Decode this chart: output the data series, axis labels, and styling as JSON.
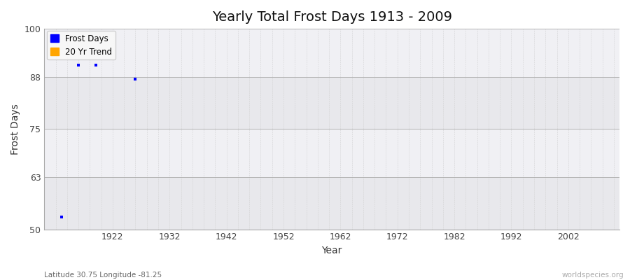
{
  "title": "Yearly Total Frost Days 1913 - 2009",
  "xlabel": "Year",
  "ylabel": "Frost Days",
  "subtitle": "Latitude 30.75 Longitude -81.25",
  "watermark": "worldspecies.org",
  "xlim": [
    1910,
    2011
  ],
  "ylim": [
    50,
    100
  ],
  "yticks": [
    50,
    63,
    75,
    88,
    100
  ],
  "xticks": [
    1922,
    1932,
    1942,
    1952,
    1962,
    1972,
    1982,
    1992,
    2002
  ],
  "data_years": [
    1913,
    1916,
    1919,
    1926
  ],
  "data_values": [
    53,
    91,
    91,
    87.5
  ],
  "point_color": "#0000ff",
  "point_size": 8,
  "legend_entries": [
    "Frost Days",
    "20 Yr Trend"
  ],
  "legend_colors": [
    "#0000ff",
    "#ffa500"
  ],
  "band_color_dark": "#e8e8ec",
  "band_color_light": "#f0f0f4",
  "grid_color": "#cccccc",
  "fig_bg": "#ffffff",
  "title_fontsize": 14,
  "axis_label_fontsize": 10,
  "tick_fontsize": 9
}
